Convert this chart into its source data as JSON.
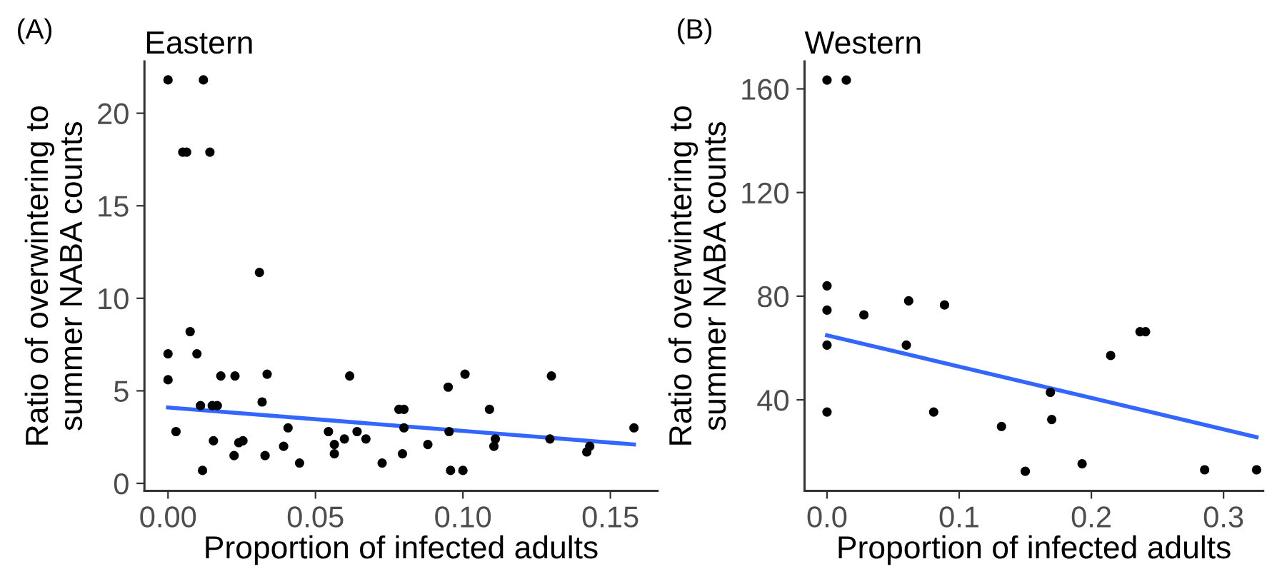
{
  "chart_data": [
    {
      "type": "scatter",
      "title": "Eastern",
      "xlabel": "Proportion of infected adults",
      "ylabel": "Ratio of overwintering to\nsummer NABA counts",
      "annotations": [
        "(A)"
      ],
      "grid": false,
      "xlim": [
        -0.008,
        0.166
      ],
      "ylim": [
        -0.4,
        22.8
      ],
      "xticks": [
        {
          "value": 0,
          "label": "0.00"
        },
        {
          "value": 0.05,
          "label": "0.05"
        },
        {
          "value": 0.1,
          "label": "0.10"
        },
        {
          "value": 0.15,
          "label": "0.15"
        }
      ],
      "yticks": [
        0,
        5,
        10,
        15,
        20
      ],
      "series": [
        {
          "marker": "circle",
          "color": "#000000",
          "x": [
            0,
            0.012,
            0.005,
            0.0063,
            0.0142,
            0.031,
            0.0075,
            0,
            0.0098,
            0,
            0.0179,
            0.0227,
            0.0336,
            0.0616,
            0.1007,
            0.13,
            0.095,
            0.011,
            0.015,
            0.0167,
            0.0319,
            0.0783,
            0.08,
            0.109,
            0.0027,
            0.0154,
            0.024,
            0.0254,
            0.0407,
            0.0544,
            0.0564,
            0.0564,
            0.0598,
            0.0641,
            0.0671,
            0.08,
            0.0795,
            0.0881,
            0.0953,
            0.111,
            0.1105,
            0.1295,
            0.0117,
            0.0224,
            0.0329,
            0.0392,
            0.0446,
            0.0726,
            0.0958,
            0.1,
            0.142,
            0.143,
            0.158
          ],
          "values": [
            21.8,
            21.8,
            17.9,
            17.9,
            17.9,
            11.4,
            8.2,
            7.0,
            7.0,
            5.6,
            5.8,
            5.8,
            5.9,
            5.8,
            5.9,
            5.8,
            5.2,
            4.2,
            4.2,
            4.2,
            4.4,
            4.0,
            4.0,
            4.0,
            2.8,
            2.3,
            2.2,
            2.3,
            3.0,
            2.8,
            2.1,
            1.6,
            2.4,
            2.8,
            2.4,
            3.0,
            1.6,
            2.1,
            2.8,
            2.4,
            2.0,
            2.4,
            0.7,
            1.5,
            1.5,
            2.0,
            1.1,
            1.1,
            0.7,
            0.7,
            1.7,
            2.0,
            3.0
          ]
        },
        {
          "type": "line",
          "color": "#3366ff",
          "x": [
            0,
            0.158
          ],
          "values": [
            4.1,
            2.1
          ]
        }
      ]
    },
    {
      "type": "scatter",
      "title": "Western",
      "xlabel": "Proportion of infected adults",
      "ylabel": "Ratio of overwintering to\nsummer NABA counts",
      "annotations": [
        "(B)"
      ],
      "grid": false,
      "xlim": [
        -0.017,
        0.33
      ],
      "ylim": [
        4.9,
        170.6
      ],
      "xticks": [
        {
          "value": 0,
          "label": "0.0"
        },
        {
          "value": 0.1,
          "label": "0.1"
        },
        {
          "value": 0.2,
          "label": "0.2"
        },
        {
          "value": 0.3,
          "label": "0.3"
        }
      ],
      "yticks": [
        40,
        80,
        120,
        160
      ],
      "series": [
        {
          "marker": "circle",
          "color": "#000000",
          "x": [
            0,
            0.0146,
            0,
            0,
            0.0279,
            0.0618,
            0.0889,
            0,
            0.06,
            0,
            0.0807,
            0.132,
            0.15,
            0.169,
            0.17,
            0.193,
            0.2146,
            0.2368,
            0.241,
            0.2857,
            0.325
          ],
          "values": [
            163.4,
            163.4,
            84.0,
            74.6,
            72.8,
            78.2,
            76.6,
            61.1,
            61.1,
            35.3,
            35.3,
            29.7,
            12.4,
            42.9,
            32.4,
            15.3,
            57.1,
            66.3,
            66.3,
            13.0,
            13.0
          ]
        },
        {
          "type": "line",
          "color": "#3366ff",
          "x": [
            0,
            0.325
          ],
          "values": [
            64.9,
            25.6
          ]
        }
      ]
    }
  ]
}
